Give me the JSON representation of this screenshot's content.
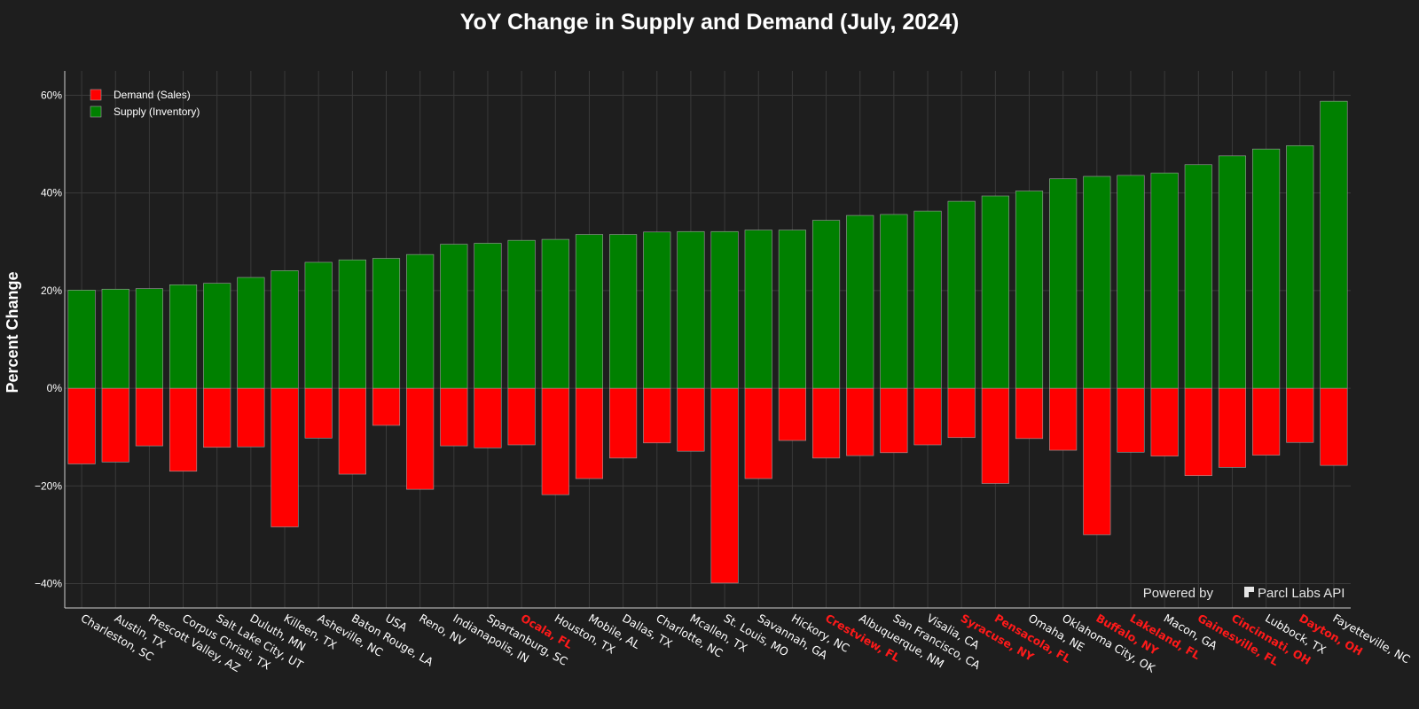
{
  "colors": {
    "background": "#1e1e1e",
    "grid": "#3a3a3a",
    "axis": "#cfcfcf",
    "supply": "#008000",
    "demand": "#ff0000",
    "highlight_label": "#ff1a1a"
  },
  "watermark": {
    "prefix": "Powered by",
    "brand": "Parcl Labs API",
    "logo_icon": "parcl-logo-icon"
  },
  "chart_data": {
    "type": "bar",
    "title": "YoY Change in Supply and Demand (July, 2024)",
    "xlabel": "",
    "ylabel": "Percent Change",
    "ylim": [
      -45,
      65
    ],
    "yticks": [
      -40,
      -20,
      0,
      20,
      40,
      60
    ],
    "ytick_labels": [
      "−40%",
      "−20%",
      "0%",
      "20%",
      "40%",
      "60%"
    ],
    "grid": true,
    "legend_position": "top-left",
    "barmode": "overlay",
    "categories": [
      "Charleston, SC",
      "Austin, TX",
      "Prescott Valley, AZ",
      "Corpus Christi, TX",
      "Salt Lake City, UT",
      "Duluth, MN",
      "Killeen, TX",
      "Asheville, NC",
      "Baton Rouge, LA",
      "USA",
      "Reno, NV",
      "Indianapolis, IN",
      "Spartanburg, SC",
      "Ocala, FL",
      "Houston, TX",
      "Mobile, AL",
      "Dallas, TX",
      "Charlotte, NC",
      "Mcallen, TX",
      "St. Louis, MO",
      "Savannah, GA",
      "Hickory, NC",
      "Crestview, FL",
      "Albuquerque, NM",
      "San Francisco, CA",
      "Visalia, CA",
      "Syracuse, NY",
      "Pensacola, FL",
      "Omaha, NE",
      "Oklahoma City, OK",
      "Buffalo, NY",
      "Lakeland, FL",
      "Macon, GA",
      "Gainesville, FL",
      "Cincinnati, OH",
      "Lubbock, TX",
      "Dayton, OH",
      "Fayetteville, NC"
    ],
    "highlighted_categories": [
      "Ocala, FL",
      "Crestview, FL",
      "Syracuse, NY",
      "Pensacola, FL",
      "Buffalo, NY",
      "Lakeland, FL",
      "Gainesville, FL",
      "Cincinnati, OH",
      "Dayton, OH"
    ],
    "series": [
      {
        "name": "Demand (Sales)",
        "color": "#ff0000",
        "values": [
          -15.5,
          -15.1,
          -11.8,
          -17.0,
          -12.1,
          -12.0,
          -28.4,
          -10.2,
          -17.6,
          -7.6,
          -20.7,
          -11.8,
          -12.2,
          -11.6,
          -21.8,
          -18.5,
          -14.3,
          -11.2,
          -12.9,
          -39.9,
          -18.5,
          -10.7,
          -14.3,
          -13.8,
          -13.2,
          -11.6,
          -10.1,
          -19.5,
          -10.3,
          -12.7,
          -30.0,
          -13.1,
          -13.9,
          -17.9,
          -16.2,
          -13.7,
          -11.1,
          -15.8
        ]
      },
      {
        "name": "Supply (Inventory)",
        "color": "#008000",
        "values": [
          20.1,
          20.3,
          20.4,
          21.2,
          21.5,
          22.7,
          24.1,
          25.8,
          26.3,
          26.6,
          27.4,
          29.5,
          29.7,
          30.3,
          30.5,
          31.5,
          31.5,
          32.0,
          32.1,
          32.1,
          32.4,
          32.4,
          34.4,
          35.4,
          35.6,
          36.3,
          38.3,
          39.4,
          40.4,
          42.9,
          43.4,
          43.6,
          44.1,
          45.8,
          47.6,
          49.0,
          49.7,
          58.8
        ]
      }
    ]
  }
}
